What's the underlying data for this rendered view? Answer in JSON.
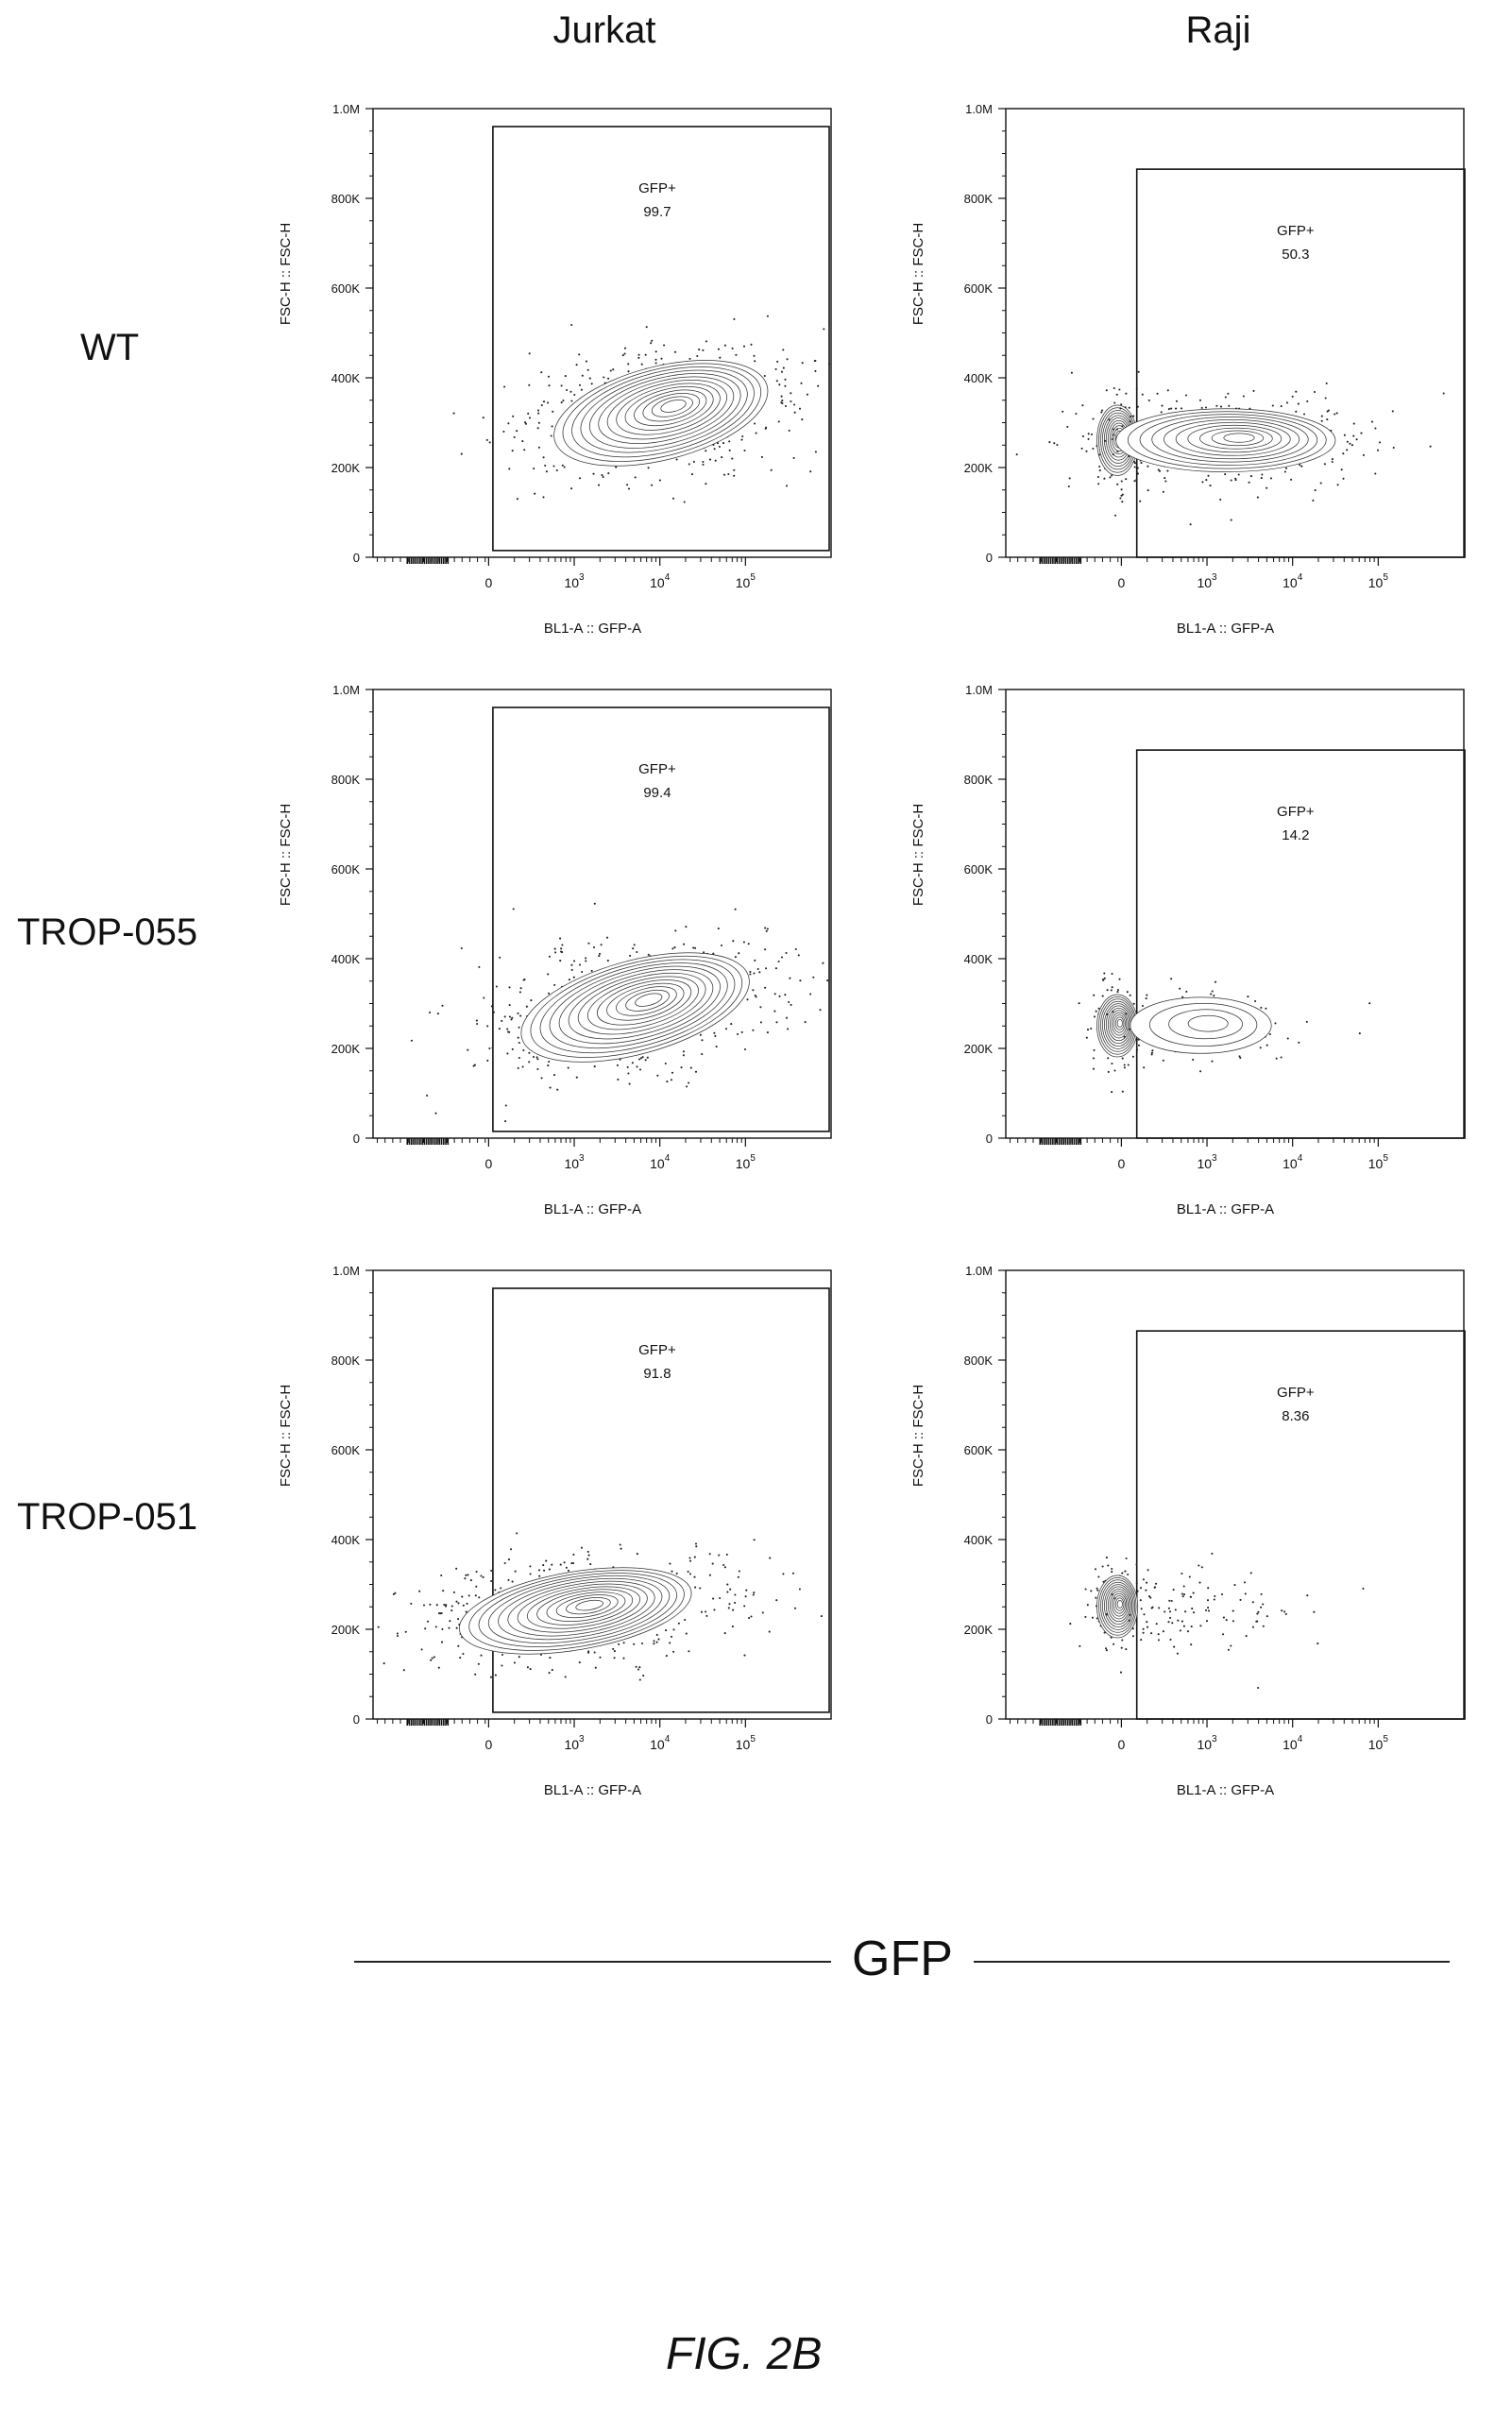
{
  "columns": [
    "Jurkat",
    "Raji"
  ],
  "rows": [
    "WT",
    "TROP-055",
    "TROP-051"
  ],
  "axis_label": "GFP",
  "figure_label": "FIG. 2B",
  "chart_data": [
    {
      "type": "scatter",
      "cell_line": "Jurkat",
      "construct": "WT",
      "xlabel": "BL1-A :: GFP-A",
      "ylabel": "FSC-H :: FSC-H",
      "x_ticks": [
        "0",
        "10^3",
        "10^4",
        "10^5"
      ],
      "y_ticks": [
        "0",
        "200K",
        "400K",
        "600K",
        "800K",
        "1.0M"
      ],
      "ylim": [
        0,
        1000000
      ],
      "gate": {
        "name": "GFP+",
        "percent": "99.7"
      },
      "population": {
        "gfp_center_log10": 4.0,
        "gfp_spread_log10": 0.7,
        "fsc_center": 320000,
        "fsc_spread": 60000,
        "tilt": 0.35
      }
    },
    {
      "type": "scatter",
      "cell_line": "Raji",
      "construct": "WT",
      "xlabel": "BL1-A :: GFP-A",
      "ylabel": "FSC-H :: FSC-H",
      "x_ticks": [
        "0",
        "10^3",
        "10^4",
        "10^5"
      ],
      "y_ticks": [
        "0",
        "200K",
        "400K",
        "600K",
        "800K",
        "1.0M"
      ],
      "ylim": [
        0,
        1000000
      ],
      "gate": {
        "name": "GFP+",
        "percent": "50.3"
      },
      "population": {
        "negative_fraction": 0.5,
        "gfp_center_log10": 3.2,
        "gfp_spread_log10": 0.7,
        "fsc_center": 260000,
        "fsc_spread": 45000,
        "tilt": 0.0
      }
    },
    {
      "type": "scatter",
      "cell_line": "Jurkat",
      "construct": "TROP-055",
      "xlabel": "BL1-A :: GFP-A",
      "ylabel": "FSC-H :: FSC-H",
      "x_ticks": [
        "0",
        "10^3",
        "10^4",
        "10^5"
      ],
      "y_ticks": [
        "0",
        "200K",
        "400K",
        "600K",
        "800K",
        "1.0M"
      ],
      "ylim": [
        0,
        1000000
      ],
      "gate": {
        "name": "GFP+",
        "percent": "99.4"
      },
      "population": {
        "gfp_center_log10": 3.7,
        "gfp_spread_log10": 0.75,
        "fsc_center": 290000,
        "fsc_spread": 60000,
        "tilt": 0.4
      }
    },
    {
      "type": "scatter",
      "cell_line": "Raji",
      "construct": "TROP-055",
      "xlabel": "BL1-A :: GFP-A",
      "ylabel": "FSC-H :: FSC-H",
      "x_ticks": [
        "0",
        "10^3",
        "10^4",
        "10^5"
      ],
      "y_ticks": [
        "0",
        "200K",
        "400K",
        "600K",
        "800K",
        "1.0M"
      ],
      "ylim": [
        0,
        1000000
      ],
      "gate": {
        "name": "GFP+",
        "percent": "14.2"
      },
      "population": {
        "negative_fraction": 0.86,
        "gfp_center_log10": 2.9,
        "gfp_spread_log10": 0.45,
        "fsc_center": 250000,
        "fsc_spread": 40000,
        "tilt": 0.0
      }
    },
    {
      "type": "scatter",
      "cell_line": "Jurkat",
      "construct": "TROP-051",
      "xlabel": "BL1-A :: GFP-A",
      "ylabel": "FSC-H :: FSC-H",
      "x_ticks": [
        "0",
        "10^3",
        "10^4",
        "10^5"
      ],
      "y_ticks": [
        "0",
        "200K",
        "400K",
        "600K",
        "800K",
        "1.0M"
      ],
      "ylim": [
        0,
        1000000
      ],
      "gate": {
        "name": "GFP+",
        "percent": "91.8"
      },
      "population": {
        "gfp_center_log10": 3.0,
        "gfp_spread_log10": 0.75,
        "fsc_center": 240000,
        "fsc_spread": 50000,
        "tilt": 0.3
      }
    },
    {
      "type": "scatter",
      "cell_line": "Raji",
      "construct": "TROP-051",
      "xlabel": "BL1-A :: GFP-A",
      "ylabel": "FSC-H :: FSC-H",
      "x_ticks": [
        "0",
        "10^3",
        "10^4",
        "10^5"
      ],
      "y_ticks": [
        "0",
        "200K",
        "400K",
        "600K",
        "800K",
        "1.0M"
      ],
      "ylim": [
        0,
        1000000
      ],
      "gate": {
        "name": "GFP+",
        "percent": "8.36"
      },
      "population": {
        "negative_fraction": 0.92,
        "gfp_center_log10": 2.8,
        "gfp_spread_log10": 0.5,
        "fsc_center": 250000,
        "fsc_spread": 40000,
        "tilt": 0.0
      }
    }
  ]
}
